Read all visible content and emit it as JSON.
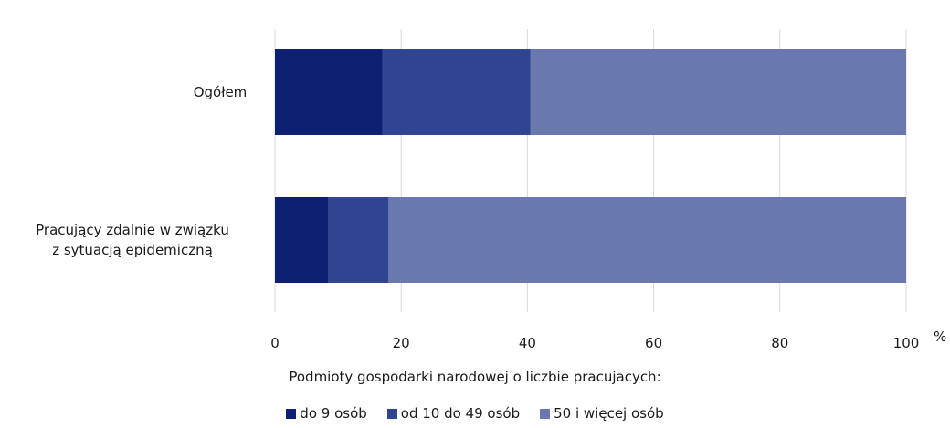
{
  "chart_data": {
    "type": "bar",
    "orientation": "horizontal",
    "stacked": true,
    "categories": [
      "Ogółem",
      "Pracujący zdalnie w związku\nz sytuacją epidemiczną"
    ],
    "series": [
      {
        "name": "do 9 osób",
        "color": "#0c1f70",
        "values": [
          17,
          8.5
        ]
      },
      {
        "name": "od 10 do 49 osób",
        "color": "#2f4592",
        "values": [
          23.5,
          9.5
        ]
      },
      {
        "name": "50 i więcej osób",
        "color": "#6a78b0",
        "values": [
          59.5,
          82
        ]
      }
    ],
    "xlim": [
      0,
      100
    ],
    "xticks": [
      0,
      20,
      40,
      60,
      80,
      100
    ],
    "xunit": "%",
    "grid": true,
    "legend_title": "Podmioty gospodarki narodowej o liczbie pracujacych:",
    "legend_position": "bottom"
  }
}
